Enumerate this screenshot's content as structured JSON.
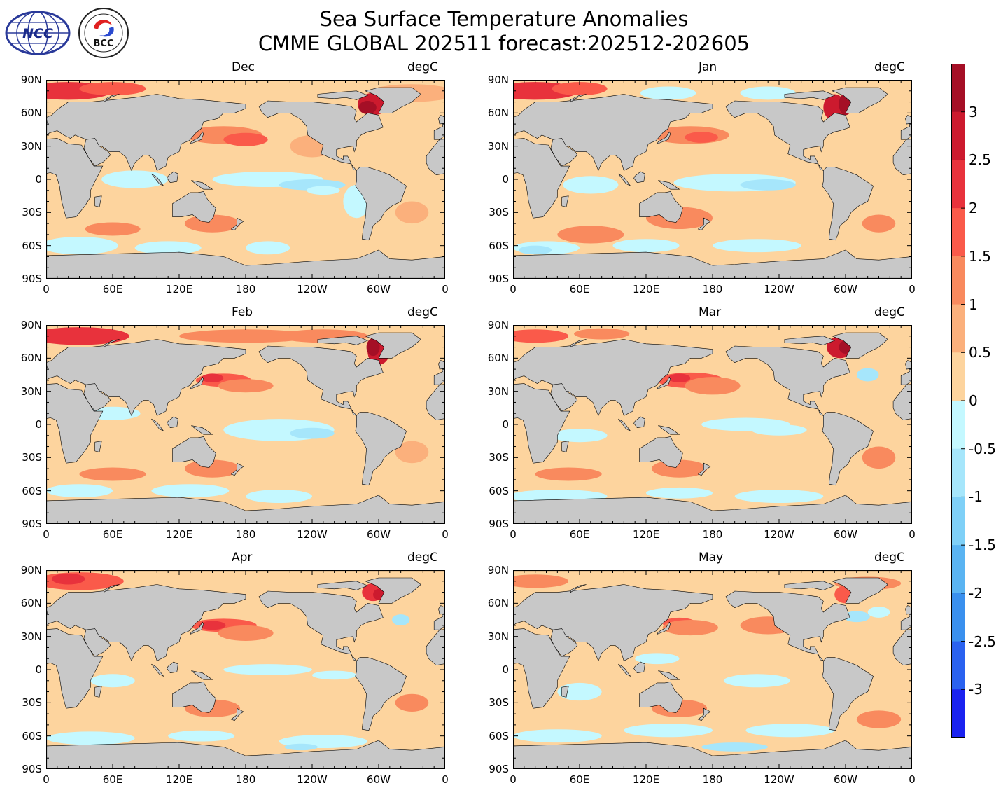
{
  "title": {
    "line1": "Sea Surface Temperature Anomalies",
    "line2": "CMME GLOBAL 202511 forecast:202512-202605"
  },
  "logos": [
    {
      "name": "ncc-logo",
      "text": "NCC"
    },
    {
      "name": "bcc-logo",
      "text": "BCC"
    }
  ],
  "unit": "degC",
  "y_ticks": [
    "90N",
    "60N",
    "30N",
    "0",
    "30S",
    "60S",
    "90S"
  ],
  "x_ticks": [
    "0",
    "60E",
    "120E",
    "180",
    "120W",
    "60W",
    "0"
  ],
  "panels": [
    {
      "month": "Dec"
    },
    {
      "month": "Jan"
    },
    {
      "month": "Feb"
    },
    {
      "month": "Mar"
    },
    {
      "month": "Apr"
    },
    {
      "month": "May"
    }
  ],
  "colorbar": {
    "labels": [
      "3",
      "2.5",
      "2",
      "1.5",
      "1",
      "0.5",
      "0",
      "-0.5",
      "-1",
      "-1.5",
      "-2",
      "-2.5",
      "-3"
    ],
    "colors_top_to_bottom": [
      "#a50f26",
      "#cc1a2e",
      "#e8323c",
      "#fa5a4a",
      "#f98a5e",
      "#fbb07c",
      "#fdd49e",
      "#c4f8ff",
      "#a6e6fb",
      "#7fd0f7",
      "#5ab4f2",
      "#3a90ee",
      "#2a62f0",
      "#1a22f0"
    ],
    "land_color": "#c8c8c8"
  }
}
